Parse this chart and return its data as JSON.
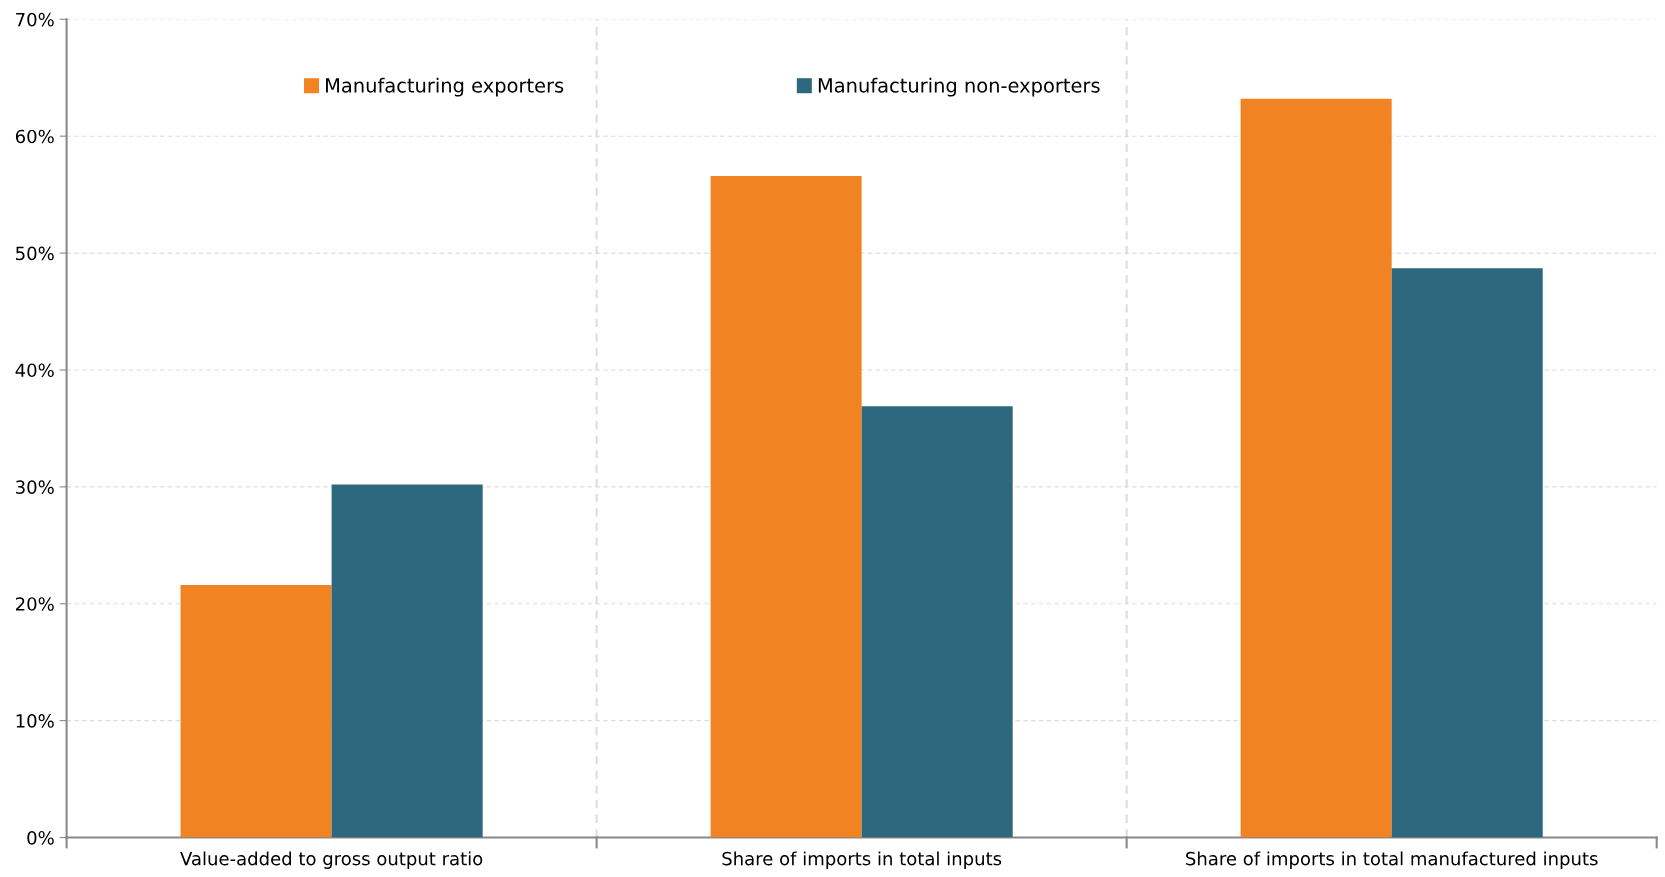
{
  "chart_data": {
    "type": "bar",
    "categories": [
      "Value-added to gross output ratio",
      "Share of imports in total inputs",
      "Share of imports in total manufactured inputs"
    ],
    "series": [
      {
        "name": "Manufacturing exporters",
        "color": "#f28322",
        "values": [
          21.6,
          56.6,
          63.2
        ]
      },
      {
        "name": "Manufacturing non-exporters",
        "color": "#2e687e",
        "values": [
          30.2,
          36.9,
          48.7
        ]
      }
    ],
    "ylim": [
      0,
      70
    ],
    "yticks": [
      {
        "value": 0,
        "label": "0%"
      },
      {
        "value": 10,
        "label": "10%"
      },
      {
        "value": 20,
        "label": "20%"
      },
      {
        "value": 30,
        "label": "30%"
      },
      {
        "value": 40,
        "label": "40%"
      },
      {
        "value": 50,
        "label": "50%"
      },
      {
        "value": 60,
        "label": "60%"
      },
      {
        "value": 70,
        "label": "70%"
      }
    ],
    "grid": true,
    "legend": "top"
  }
}
